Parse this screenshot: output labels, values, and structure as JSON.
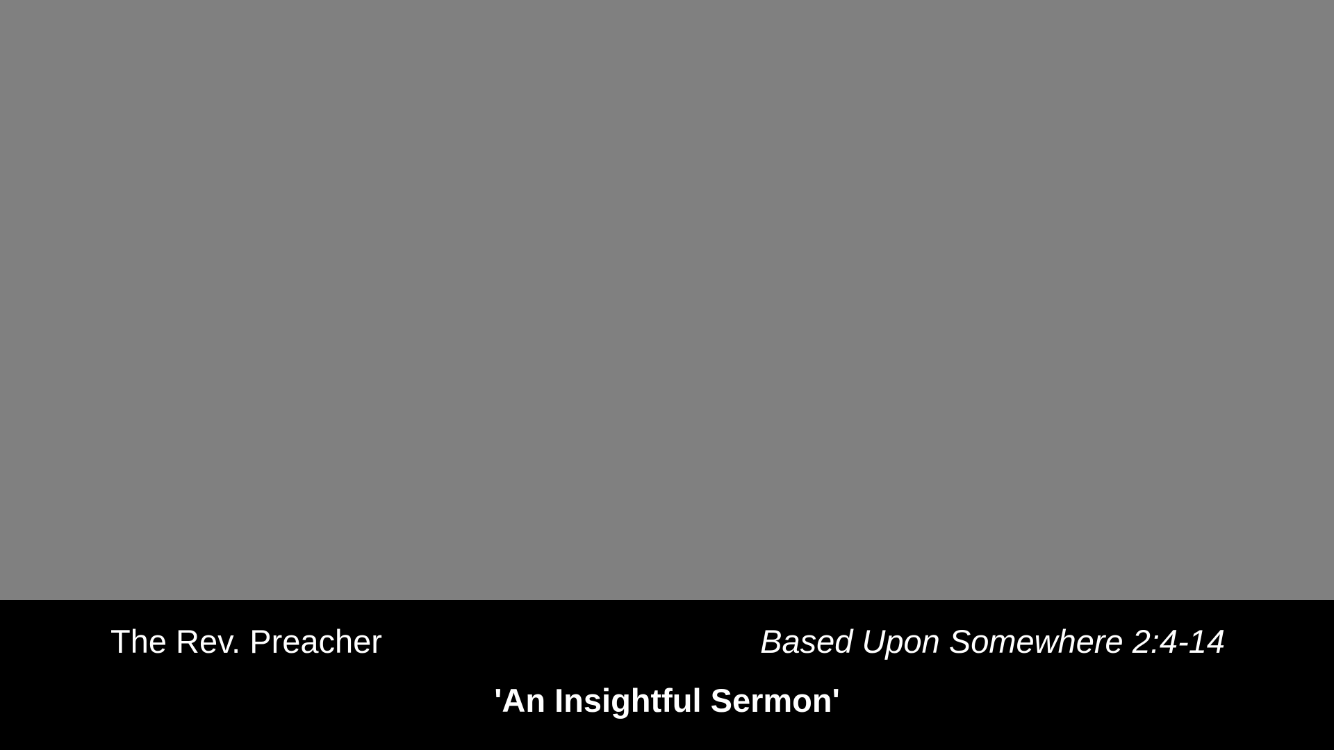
{
  "colors": {
    "video_background": "#808080",
    "banner_background": "#000000",
    "text": "#ffffff"
  },
  "lower_third": {
    "speaker": "The Rev. Preacher",
    "reference": "Based Upon Somewhere 2:4-14",
    "sermon_title": "'An Insightful Sermon'"
  }
}
